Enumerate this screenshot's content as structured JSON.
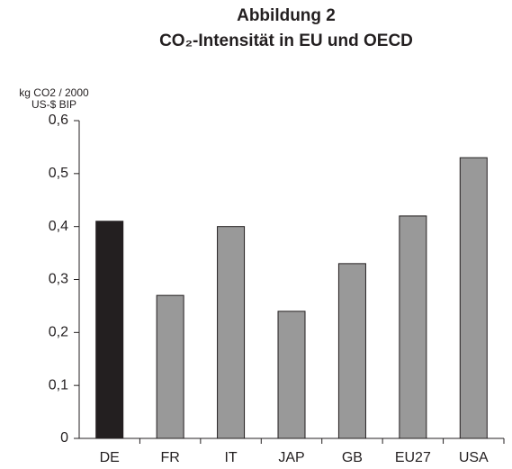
{
  "chart_data": {
    "type": "bar",
    "title": [
      "Abbildung 2",
      "CO₂-Intensität in EU und OECD"
    ],
    "ylabel": [
      "kg CO2 /  2000",
      "US-$ BIP"
    ],
    "categories": [
      "DE",
      "FR",
      "IT",
      "JAP",
      "GB",
      "EU27",
      "USA"
    ],
    "values": [
      0.41,
      0.27,
      0.4,
      0.24,
      0.33,
      0.42,
      0.53
    ],
    "colors": [
      "#231f20",
      "#999999",
      "#999999",
      "#999999",
      "#999999",
      "#999999",
      "#999999"
    ],
    "ylim": [
      0,
      0.6
    ],
    "yticks": [
      0,
      {
        "value": 0.1,
        "label": "0,1"
      },
      {
        "value": 0.2,
        "label": "0,2"
      },
      {
        "value": 0.3,
        "label": "0,3"
      },
      {
        "value": 0.4,
        "label": "0,4"
      },
      {
        "value": 0.5,
        "label": "0,5"
      },
      {
        "value": 0.6,
        "label": "0,6"
      }
    ],
    "grid": false
  }
}
